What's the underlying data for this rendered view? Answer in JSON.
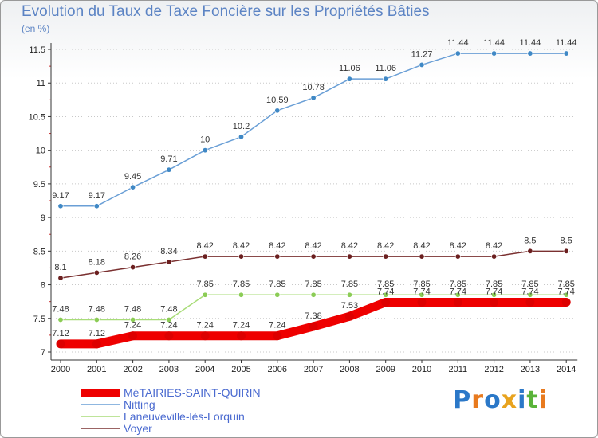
{
  "chart_data": {
    "type": "line",
    "title": "Evolution du Taux de Taxe Foncière sur les Propriétés Bâties",
    "ylabel": "(en %)",
    "xlabel": "",
    "categories": [
      "2000",
      "2001",
      "2002",
      "2003",
      "2004",
      "2005",
      "2006",
      "2007",
      "2008",
      "2009",
      "2010",
      "2011",
      "2012",
      "2013",
      "2014"
    ],
    "ylim": [
      7,
      11.5
    ],
    "yticks": [
      "7",
      "7.5",
      "8",
      "8.5",
      "9",
      "9.5",
      "10",
      "10.5",
      "11",
      "11.5"
    ],
    "series": [
      {
        "name": "MéTAIRIES-SAINT-QUIRIN",
        "color": "#ee0000",
        "values": [
          7.12,
          7.12,
          7.24,
          7.24,
          7.24,
          7.24,
          7.24,
          7.38,
          7.53,
          7.74,
          7.74,
          7.74,
          7.74,
          7.74,
          7.74
        ],
        "labels": [
          "7.12",
          "7.12",
          "7.24",
          "7.24",
          "7.24",
          "7.24",
          "7.24",
          "7.38",
          "7.53",
          "7.74",
          "7.74",
          "7.74",
          "7.74",
          "7.74",
          "7.74"
        ]
      },
      {
        "name": "Nitting",
        "color": "#6a9fd6",
        "marker": "#3f88c5",
        "values": [
          9.17,
          9.17,
          9.45,
          9.71,
          10,
          10.2,
          10.59,
          10.78,
          11.06,
          11.06,
          11.27,
          11.44,
          11.44,
          11.44,
          11.44
        ],
        "labels": [
          "9.17",
          "9.17",
          "9.45",
          "9.71",
          "10",
          "10.2",
          "10.59",
          "10.78",
          "11.06",
          "11.06",
          "11.27",
          "11.44",
          "11.44",
          "11.44",
          "11.44"
        ]
      },
      {
        "name": "Laneuveville-lès-Lorquin",
        "color": "#a8dc78",
        "marker": "#8bcc55",
        "values": [
          7.48,
          7.48,
          7.48,
          7.48,
          7.85,
          7.85,
          7.85,
          7.85,
          7.85,
          7.85,
          7.85,
          7.85,
          7.85,
          7.85,
          7.85
        ],
        "labels": [
          "7.48",
          "7.48",
          "7.48",
          "7.48",
          "7.85",
          "7.85",
          "7.85",
          "7.85",
          "7.85",
          "7.85",
          "7.85",
          "7.85",
          "7.85",
          "7.85",
          "7.85"
        ]
      },
      {
        "name": "Voyer",
        "color": "#7a3030",
        "marker": "#6b1f1f",
        "values": [
          8.1,
          8.18,
          8.26,
          8.34,
          8.42,
          8.42,
          8.42,
          8.42,
          8.42,
          8.42,
          8.42,
          8.42,
          8.42,
          8.5,
          8.5
        ],
        "labels": [
          "8.1",
          "8.18",
          "8.26",
          "8.34",
          "8.42",
          "8.42",
          "8.42",
          "8.42",
          "8.42",
          "8.42",
          "8.42",
          "8.42",
          "8.42",
          "8.5",
          "8.5"
        ]
      }
    ]
  },
  "logo": {
    "text": "Proxiti"
  }
}
